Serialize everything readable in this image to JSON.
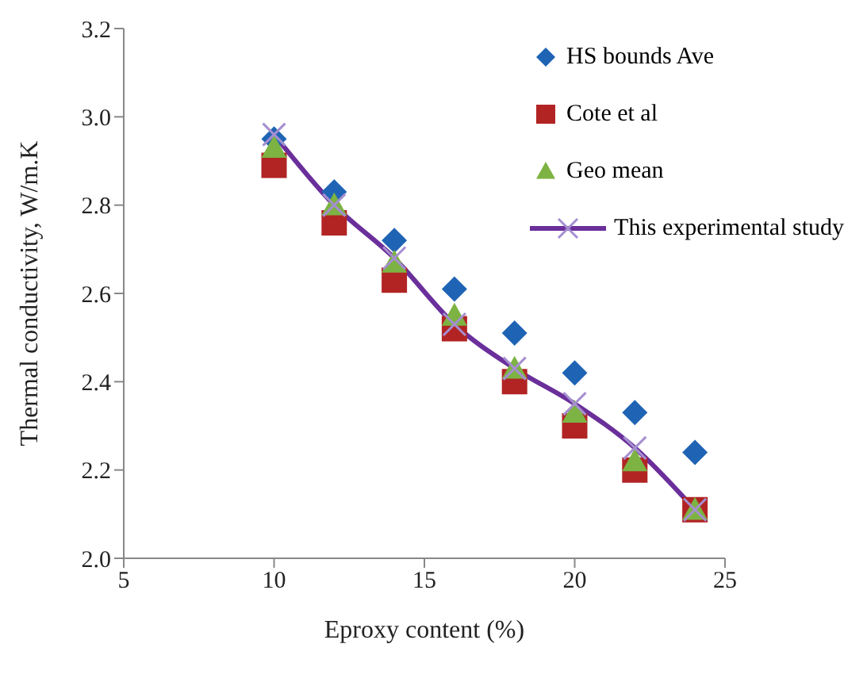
{
  "chart_data": {
    "type": "scatter",
    "xlabel": "Eproxy content (%)",
    "ylabel": "Thermal conductivity, W/m.K",
    "x": [
      10,
      12,
      14,
      16,
      18,
      20,
      22,
      24
    ],
    "series": [
      {
        "name": "HS bounds Ave",
        "marker": "diamond",
        "color": "#1f64b4",
        "values": [
          2.95,
          2.83,
          2.72,
          2.61,
          2.51,
          2.42,
          2.33,
          2.24
        ]
      },
      {
        "name": "Cote et al",
        "marker": "square",
        "color": "#b22424",
        "values": [
          2.89,
          2.76,
          2.63,
          2.52,
          2.4,
          2.3,
          2.2,
          2.11
        ]
      },
      {
        "name": "Geo mean",
        "marker": "triangle",
        "color": "#7cb342",
        "values": [
          2.93,
          2.8,
          2.67,
          2.55,
          2.43,
          2.33,
          2.22,
          2.11
        ]
      },
      {
        "name": "This experimental study",
        "type": "line",
        "marker": "cross",
        "color": "#6a2f9a",
        "values": [
          2.96,
          2.8,
          2.68,
          2.53,
          2.43,
          2.35,
          2.25,
          2.11
        ]
      }
    ],
    "xlim": [
      5,
      25
    ],
    "xticks": [
      5,
      10,
      15,
      20,
      25
    ],
    "ylim": [
      2,
      3.2
    ],
    "yticks": [
      {
        "value": 2,
        "label": "2.0"
      },
      {
        "value": 2.2,
        "label": "2.2"
      },
      {
        "value": 2.4,
        "label": "2.4"
      },
      {
        "value": 2.6,
        "label": "2.6"
      },
      {
        "value": 2.8,
        "label": "2.8"
      },
      {
        "value": 3,
        "label": "3.0"
      },
      {
        "value": 3.2,
        "label": "3.2"
      }
    ],
    "grid": false,
    "legend": "top right"
  }
}
